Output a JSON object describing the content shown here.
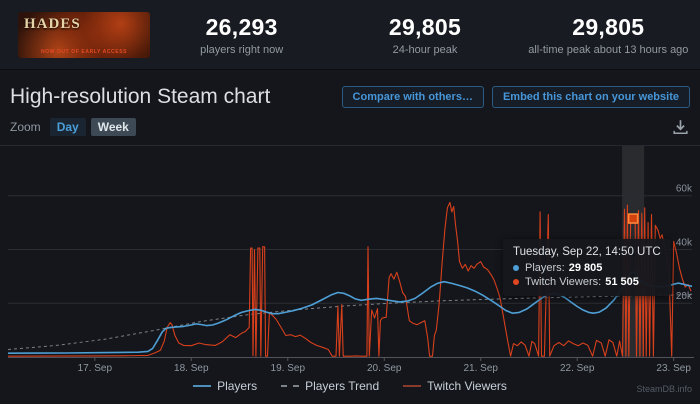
{
  "app": {
    "watermark": "SteamDB.info"
  },
  "stats_bar": {
    "game_banner": {
      "title": "HADES",
      "subtitle": "NOW OUT OF EARLY ACCESS"
    },
    "stats": [
      {
        "value": "26,293",
        "label": "players right now"
      },
      {
        "value": "29,805",
        "label": "24-hour peak"
      },
      {
        "value": "29,805",
        "label": "all-time peak about 13 hours ago"
      }
    ]
  },
  "section": {
    "title": "High-resolution Steam chart",
    "buttons": [
      {
        "label": "Compare with others…"
      },
      {
        "label": "Embed this chart on your website"
      }
    ]
  },
  "toolbar": {
    "zoom_label": "Zoom",
    "options": [
      {
        "label": "Day",
        "active": false
      },
      {
        "label": "Week",
        "active": true
      }
    ]
  },
  "tooltip": {
    "title": "Tuesday, Sep 22, 14:50 UTC",
    "rows": [
      {
        "label": "Players:",
        "value": "29 805",
        "color": "#4e9fd6"
      },
      {
        "label": "Twitch Viewers:",
        "value": "51 505",
        "color": "#e2461f"
      }
    ]
  },
  "legend": [
    {
      "label": "Players",
      "color": "#4c8fbb",
      "dash": false
    },
    {
      "label": "Players Trend",
      "color": "#7d838a",
      "dash": true
    },
    {
      "label": "Twitch Viewers",
      "color": "#8a3a2a",
      "dash": false
    }
  ],
  "chart_data": {
    "type": "line",
    "title": "High-resolution Steam chart",
    "xlabel": "",
    "ylabel": "",
    "grid": true,
    "legend_position": "bottom",
    "x_ticks": [
      "17. Sep",
      "18. Sep",
      "19. Sep",
      "20. Sep",
      "21. Sep",
      "22. Sep",
      "23. Sep"
    ],
    "x_tick_days": [
      17,
      18,
      19,
      20,
      21,
      22,
      23
    ],
    "y_ticks": [
      {
        "label": "20k",
        "value": 20000
      },
      {
        "label": "40k",
        "value": 40000
      },
      {
        "label": "60k",
        "value": 60000
      }
    ],
    "x_domain_days": [
      16.1,
      23.19
    ],
    "y_domain": [
      0,
      78500
    ],
    "hover": {
      "day": 22.58,
      "players": 29805,
      "twitch_viewers": 51505
    },
    "series": [
      {
        "name": "Players Trend",
        "color": "#8f959c",
        "style": "dashed",
        "points": [
          [
            16.1,
            2800
          ],
          [
            16.6,
            4300
          ],
          [
            17.1,
            6600
          ],
          [
            17.6,
            9800
          ],
          [
            18.1,
            13200
          ],
          [
            18.6,
            15800
          ],
          [
            19.1,
            17600
          ],
          [
            19.6,
            19000
          ],
          [
            20.1,
            20100
          ],
          [
            20.6,
            20900
          ],
          [
            21.1,
            21500
          ],
          [
            21.6,
            22000
          ],
          [
            22.1,
            22400
          ],
          [
            22.6,
            22800
          ],
          [
            23.19,
            23200
          ]
        ]
      },
      {
        "name": "Twitch Viewers",
        "color": "#d8401c",
        "style": "solid",
        "points": [
          [
            16.1,
            300
          ],
          [
            16.5,
            350
          ],
          [
            17.0,
            400
          ],
          [
            17.3,
            450
          ],
          [
            17.55,
            600
          ],
          [
            17.62,
            1500
          ],
          [
            17.68,
            2500
          ],
          [
            17.72,
            6000
          ],
          [
            17.75,
            11000
          ],
          [
            17.78,
            12800
          ],
          [
            17.8,
            12000
          ],
          [
            17.83,
            8000
          ],
          [
            17.87,
            5200
          ],
          [
            17.92,
            4300
          ],
          [
            18.0,
            4200
          ],
          [
            18.08,
            5200
          ],
          [
            18.15,
            4600
          ],
          [
            18.25,
            4300
          ],
          [
            18.32,
            5600
          ],
          [
            18.4,
            8300
          ],
          [
            18.46,
            7200
          ],
          [
            18.52,
            8800
          ],
          [
            18.56,
            9500
          ],
          [
            18.6,
            11000
          ],
          [
            18.615,
            40500
          ],
          [
            18.63,
            40500
          ],
          [
            18.64,
            500
          ],
          [
            18.655,
            40000
          ],
          [
            18.67,
            300
          ],
          [
            18.69,
            40500
          ],
          [
            18.71,
            40500
          ],
          [
            18.72,
            300
          ],
          [
            18.74,
            41000
          ],
          [
            18.76,
            41000
          ],
          [
            18.77,
            300
          ],
          [
            18.79,
            300
          ],
          [
            18.81,
            16500
          ],
          [
            18.84,
            15500
          ],
          [
            18.88,
            14000
          ],
          [
            18.93,
            11000
          ],
          [
            18.98,
            8000
          ],
          [
            19.03,
            8300
          ],
          [
            19.08,
            7600
          ],
          [
            19.13,
            8100
          ],
          [
            19.18,
            7000
          ],
          [
            19.24,
            5400
          ],
          [
            19.3,
            4300
          ],
          [
            19.36,
            3600
          ],
          [
            19.42,
            2800
          ],
          [
            19.46,
            300
          ],
          [
            19.5,
            300
          ],
          [
            19.52,
            19000
          ],
          [
            19.535,
            300
          ],
          [
            19.56,
            19500
          ],
          [
            19.575,
            300
          ],
          [
            19.6,
            300
          ],
          [
            19.65,
            300
          ],
          [
            19.7,
            400
          ],
          [
            19.76,
            300
          ],
          [
            19.82,
            300
          ],
          [
            19.832,
            41000
          ],
          [
            19.845,
            300
          ],
          [
            19.87,
            17500
          ],
          [
            19.9,
            14500
          ],
          [
            19.93,
            18000
          ],
          [
            19.945,
            300
          ],
          [
            19.96,
            13500
          ],
          [
            19.98,
            14500
          ],
          [
            20.02,
            14800
          ],
          [
            20.05,
            29500
          ],
          [
            20.07,
            31000
          ],
          [
            20.1,
            29000
          ],
          [
            20.13,
            31500
          ],
          [
            20.16,
            28000
          ],
          [
            20.19,
            24000
          ],
          [
            20.22,
            22500
          ],
          [
            20.26,
            13500
          ],
          [
            20.3,
            12500
          ],
          [
            20.34,
            12000
          ],
          [
            20.38,
            12800
          ],
          [
            20.42,
            13500
          ],
          [
            20.45,
            7000
          ],
          [
            20.47,
            300
          ],
          [
            20.5,
            300
          ],
          [
            20.52,
            8000
          ],
          [
            20.54,
            10000
          ],
          [
            20.57,
            20000
          ],
          [
            20.6,
            35000
          ],
          [
            20.63,
            48000
          ],
          [
            20.655,
            55500
          ],
          [
            20.68,
            57500
          ],
          [
            20.7,
            54000
          ],
          [
            20.72,
            56000
          ],
          [
            20.74,
            49000
          ],
          [
            20.76,
            43000
          ],
          [
            20.78,
            35500
          ],
          [
            20.81,
            33000
          ],
          [
            20.84,
            34500
          ],
          [
            20.87,
            32000
          ],
          [
            20.9,
            34000
          ],
          [
            20.93,
            33000
          ],
          [
            20.96,
            34500
          ],
          [
            21.0,
            35500
          ],
          [
            21.03,
            33500
          ],
          [
            21.07,
            32500
          ],
          [
            21.11,
            30500
          ],
          [
            21.14,
            28500
          ],
          [
            21.17,
            25500
          ],
          [
            21.2,
            22000
          ],
          [
            21.24,
            14000
          ],
          [
            21.28,
            6000
          ],
          [
            21.31,
            300
          ],
          [
            21.34,
            5000
          ],
          [
            21.38,
            4200
          ],
          [
            21.42,
            5600
          ],
          [
            21.46,
            4400
          ],
          [
            21.5,
            300
          ],
          [
            21.53,
            5800
          ],
          [
            21.56,
            5000
          ],
          [
            21.6,
            300
          ],
          [
            21.615,
            54000
          ],
          [
            21.63,
            300
          ],
          [
            21.66,
            300
          ],
          [
            21.7,
            53000
          ],
          [
            21.715,
            300
          ],
          [
            21.76,
            4200
          ],
          [
            21.81,
            5400
          ],
          [
            21.86,
            4200
          ],
          [
            21.91,
            6000
          ],
          [
            21.96,
            5000
          ],
          [
            22.01,
            4200
          ],
          [
            22.06,
            5200
          ],
          [
            22.11,
            4400
          ],
          [
            22.16,
            300
          ],
          [
            22.2,
            6200
          ],
          [
            22.25,
            5200
          ],
          [
            22.29,
            300
          ],
          [
            22.33,
            6400
          ],
          [
            22.37,
            5400
          ],
          [
            22.41,
            300
          ],
          [
            22.44,
            6000
          ],
          [
            22.47,
            300
          ],
          [
            22.49,
            55000
          ],
          [
            22.505,
            300
          ],
          [
            22.52,
            56500
          ],
          [
            22.535,
            300
          ],
          [
            22.555,
            52000
          ],
          [
            22.58,
            51505
          ],
          [
            22.6,
            52500
          ],
          [
            22.615,
            300
          ],
          [
            22.635,
            54500
          ],
          [
            22.65,
            300
          ],
          [
            22.67,
            53500
          ],
          [
            22.685,
            300
          ],
          [
            22.7,
            55500
          ],
          [
            22.715,
            300
          ],
          [
            22.735,
            50000
          ],
          [
            22.75,
            300
          ],
          [
            22.77,
            53000
          ],
          [
            22.79,
            300
          ],
          [
            22.81,
            49000
          ],
          [
            22.84,
            47000
          ],
          [
            22.86,
            44000
          ],
          [
            22.88,
            45500
          ],
          [
            22.9,
            42000
          ],
          [
            22.93,
            38000
          ],
          [
            22.95,
            33000
          ],
          [
            22.98,
            300
          ],
          [
            23.0,
            43000
          ],
          [
            23.03,
            38500
          ],
          [
            23.06,
            33000
          ],
          [
            23.09,
            29000
          ],
          [
            23.12,
            26000
          ],
          [
            23.15,
            27000
          ],
          [
            23.18,
            24500
          ]
        ]
      },
      {
        "name": "Players",
        "color": "#4e9fd6",
        "style": "solid",
        "points": [
          [
            16.1,
            1400
          ],
          [
            16.4,
            1450
          ],
          [
            16.7,
            1500
          ],
          [
            17.0,
            1600
          ],
          [
            17.25,
            1700
          ],
          [
            17.45,
            1800
          ],
          [
            17.55,
            2100
          ],
          [
            17.6,
            3200
          ],
          [
            17.65,
            6200
          ],
          [
            17.7,
            9400
          ],
          [
            17.74,
            10700
          ],
          [
            17.79,
            11000
          ],
          [
            17.85,
            11200
          ],
          [
            17.92,
            11400
          ],
          [
            18.0,
            11900
          ],
          [
            18.05,
            12300
          ],
          [
            18.1,
            12100
          ],
          [
            18.16,
            11700
          ],
          [
            18.22,
            11900
          ],
          [
            18.28,
            12600
          ],
          [
            18.36,
            13800
          ],
          [
            18.44,
            15300
          ],
          [
            18.52,
            16600
          ],
          [
            18.6,
            17300
          ],
          [
            18.66,
            17700
          ],
          [
            18.72,
            17400
          ],
          [
            18.78,
            16700
          ],
          [
            18.84,
            16100
          ],
          [
            18.9,
            16100
          ],
          [
            18.96,
            16500
          ],
          [
            19.05,
            17200
          ],
          [
            19.15,
            18100
          ],
          [
            19.25,
            19400
          ],
          [
            19.35,
            21200
          ],
          [
            19.45,
            23100
          ],
          [
            19.52,
            24000
          ],
          [
            19.58,
            23700
          ],
          [
            19.64,
            22800
          ],
          [
            19.7,
            21600
          ],
          [
            19.76,
            21100
          ],
          [
            19.84,
            21500
          ],
          [
            19.92,
            21800
          ],
          [
            20.0,
            21400
          ],
          [
            20.08,
            20900
          ],
          [
            20.16,
            20500
          ],
          [
            20.24,
            20800
          ],
          [
            20.32,
            21800
          ],
          [
            20.4,
            23800
          ],
          [
            20.48,
            26000
          ],
          [
            20.55,
            27400
          ],
          [
            20.62,
            28000
          ],
          [
            20.7,
            27400
          ],
          [
            20.78,
            26600
          ],
          [
            20.86,
            25700
          ],
          [
            20.94,
            24500
          ],
          [
            21.02,
            23000
          ],
          [
            21.1,
            21200
          ],
          [
            21.18,
            19300
          ],
          [
            21.26,
            17300
          ],
          [
            21.33,
            16300
          ],
          [
            21.4,
            16600
          ],
          [
            21.48,
            17900
          ],
          [
            21.56,
            20000
          ],
          [
            21.64,
            22100
          ],
          [
            21.7,
            23300
          ],
          [
            21.76,
            23700
          ],
          [
            21.82,
            23100
          ],
          [
            21.88,
            21900
          ],
          [
            21.94,
            20300
          ],
          [
            22.0,
            18800
          ],
          [
            22.06,
            17500
          ],
          [
            22.12,
            16600
          ],
          [
            22.17,
            16300
          ],
          [
            22.23,
            16700
          ],
          [
            22.3,
            18200
          ],
          [
            22.38,
            21200
          ],
          [
            22.46,
            25200
          ],
          [
            22.52,
            27800
          ],
          [
            22.58,
            29805
          ],
          [
            22.64,
            28800
          ],
          [
            22.7,
            27400
          ],
          [
            22.76,
            26700
          ],
          [
            22.82,
            26300
          ],
          [
            22.88,
            26100
          ],
          [
            22.94,
            26400
          ],
          [
            23.0,
            27100
          ],
          [
            23.05,
            27500
          ],
          [
            23.1,
            27100
          ],
          [
            23.15,
            26600
          ],
          [
            23.19,
            26293
          ]
        ]
      }
    ]
  }
}
